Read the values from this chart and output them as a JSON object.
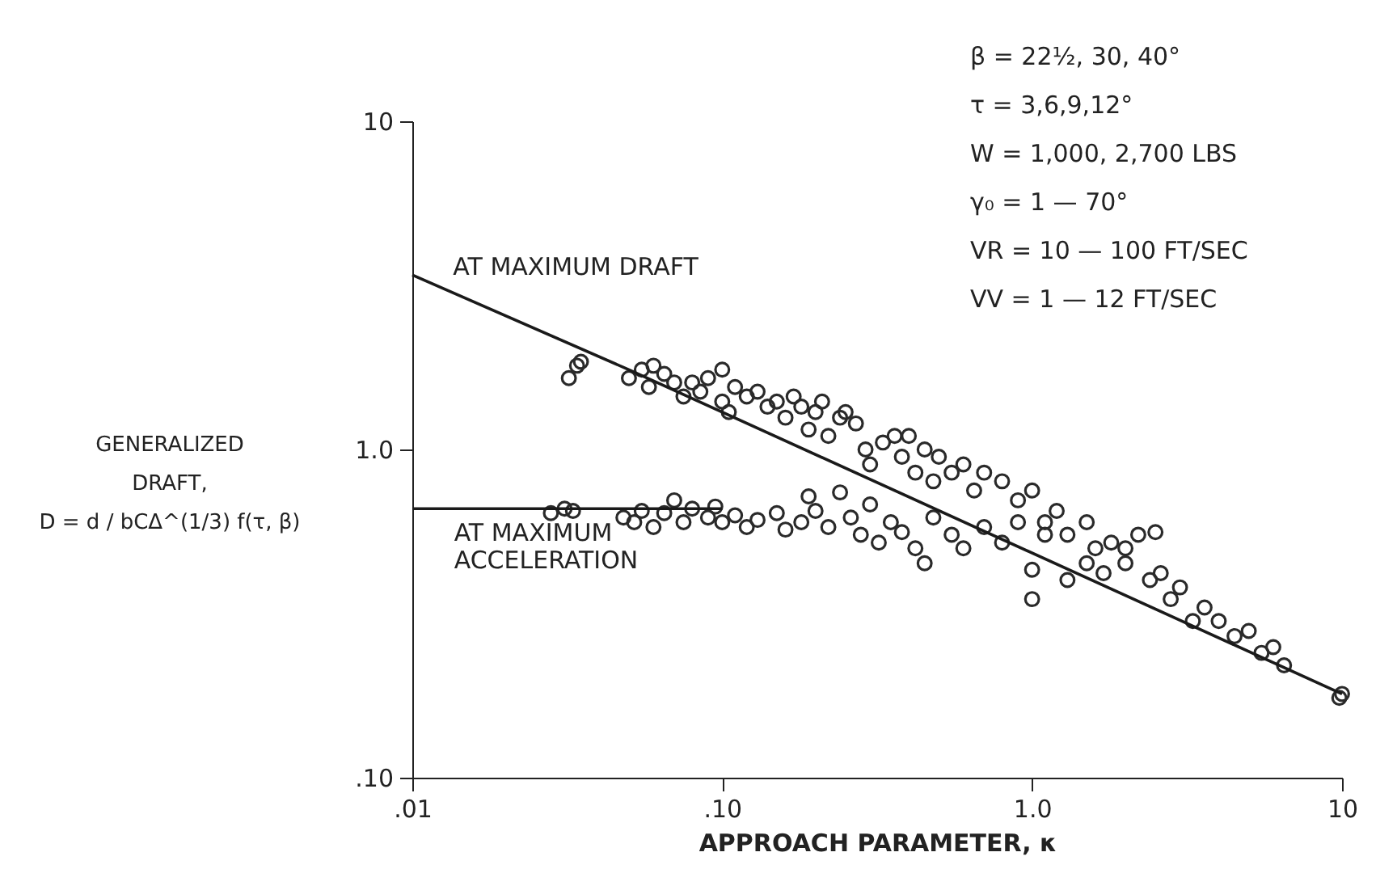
{
  "chart_data": {
    "type": "scatter",
    "xlabel": "APPROACH PARAMETER, κ",
    "ylabel": "GENERALIZED\nDRAFT,\nD = d / bCΔ^(1/3) f(τ, β)",
    "xlim": [
      0.01,
      10
    ],
    "ylim": [
      0.1,
      10
    ],
    "log": "xy",
    "marker": "circle",
    "xticks": [
      {
        "value": 0.01,
        "label": ".01"
      },
      {
        "value": 0.1,
        "label": ".10"
      },
      {
        "value": 1,
        "label": "1.0"
      },
      10
    ],
    "yticks": [
      {
        "value": 0.1,
        "label": ".10"
      },
      {
        "value": 1,
        "label": "1.0"
      },
      10
    ],
    "series": [
      {
        "type": "scatter",
        "color": "#2a2a2a",
        "x": [
          0.032,
          0.034,
          0.035,
          0.05,
          0.055,
          0.058,
          0.06,
          0.065,
          0.07,
          0.075,
          0.08,
          0.085,
          0.09,
          0.1,
          0.1,
          0.105,
          0.11,
          0.12,
          0.13,
          0.14,
          0.15,
          0.16,
          0.17,
          0.18,
          0.19,
          0.2,
          0.21,
          0.22,
          0.24,
          0.25,
          0.27,
          0.29,
          0.3,
          0.33,
          0.36,
          0.38,
          0.4,
          0.42,
          0.45,
          0.48,
          0.5,
          0.55,
          0.6,
          0.65,
          0.7,
          0.8,
          0.9,
          1.0,
          1.1,
          1.2,
          1.3,
          1.5,
          1.6,
          1.8,
          2.0,
          2.2,
          2.4,
          2.6,
          2.8,
          3.0,
          3.3,
          3.6,
          4.0,
          4.5,
          5.0,
          5.5,
          6.0,
          6.5,
          9.8,
          10,
          0.028,
          0.031,
          0.033,
          0.048,
          0.052,
          0.055,
          0.06,
          0.065,
          0.07,
          0.075,
          0.08,
          0.09,
          0.095,
          0.1,
          0.11,
          0.12,
          0.13,
          0.15,
          0.16,
          0.18,
          0.19,
          0.2,
          0.22,
          0.24,
          0.26,
          0.28,
          0.3,
          0.32,
          0.35,
          0.38,
          0.42,
          0.45,
          0.48,
          0.55,
          0.6,
          0.7,
          0.8,
          0.9,
          1.0,
          1.0,
          1.1,
          1.3,
          1.5,
          1.7,
          2.0,
          2.5
        ],
        "values": [
          1.65,
          1.8,
          1.85,
          1.65,
          1.75,
          1.55,
          1.8,
          1.7,
          1.6,
          1.45,
          1.6,
          1.5,
          1.65,
          1.75,
          1.4,
          1.3,
          1.55,
          1.45,
          1.5,
          1.35,
          1.4,
          1.25,
          1.45,
          1.35,
          1.15,
          1.3,
          1.4,
          1.1,
          1.25,
          1.3,
          1.2,
          1.0,
          0.9,
          1.05,
          1.1,
          0.95,
          1.1,
          0.85,
          1.0,
          0.8,
          0.95,
          0.85,
          0.9,
          0.75,
          0.85,
          0.8,
          0.7,
          0.75,
          0.6,
          0.65,
          0.55,
          0.6,
          0.5,
          0.52,
          0.45,
          0.55,
          0.4,
          0.42,
          0.35,
          0.38,
          0.3,
          0.33,
          0.3,
          0.27,
          0.28,
          0.24,
          0.25,
          0.22,
          0.175,
          0.18,
          0.64,
          0.66,
          0.65,
          0.62,
          0.6,
          0.65,
          0.58,
          0.64,
          0.7,
          0.6,
          0.66,
          0.62,
          0.67,
          0.6,
          0.63,
          0.58,
          0.61,
          0.64,
          0.57,
          0.6,
          0.72,
          0.65,
          0.58,
          0.74,
          0.62,
          0.55,
          0.68,
          0.52,
          0.6,
          0.56,
          0.5,
          0.45,
          0.62,
          0.55,
          0.5,
          0.58,
          0.52,
          0.6,
          0.43,
          0.35,
          0.55,
          0.4,
          0.45,
          0.42,
          0.5,
          0.56
        ]
      },
      {
        "type": "line",
        "marker": "none",
        "color": "#1a1a1a",
        "x": [
          0.01,
          0.05,
          10
        ],
        "values": [
          3.4,
          1.75,
          0.18
        ]
      },
      {
        "type": "line",
        "marker": "none",
        "color": "#1a1a1a",
        "x": [
          0.01,
          0.1
        ],
        "values": [
          0.66,
          0.66
        ]
      }
    ],
    "annotations": [
      {
        "text": "AT MAXIMUM DRAFT",
        "x": 0.012,
        "y": 3.15
      },
      {
        "text": "AT MAXIMUM\nACCELERATION",
        "x": 0.013,
        "y": 0.66
      },
      "β = 22½, 30, 40°",
      "τ = 3,6,9,12°",
      "W = 1,000, 2,700 LBS",
      "γ₀ = 1 — 70°",
      "VR = 10 — 100 FT/SEC",
      "VV = 1 — 12 FT/SEC"
    ]
  }
}
